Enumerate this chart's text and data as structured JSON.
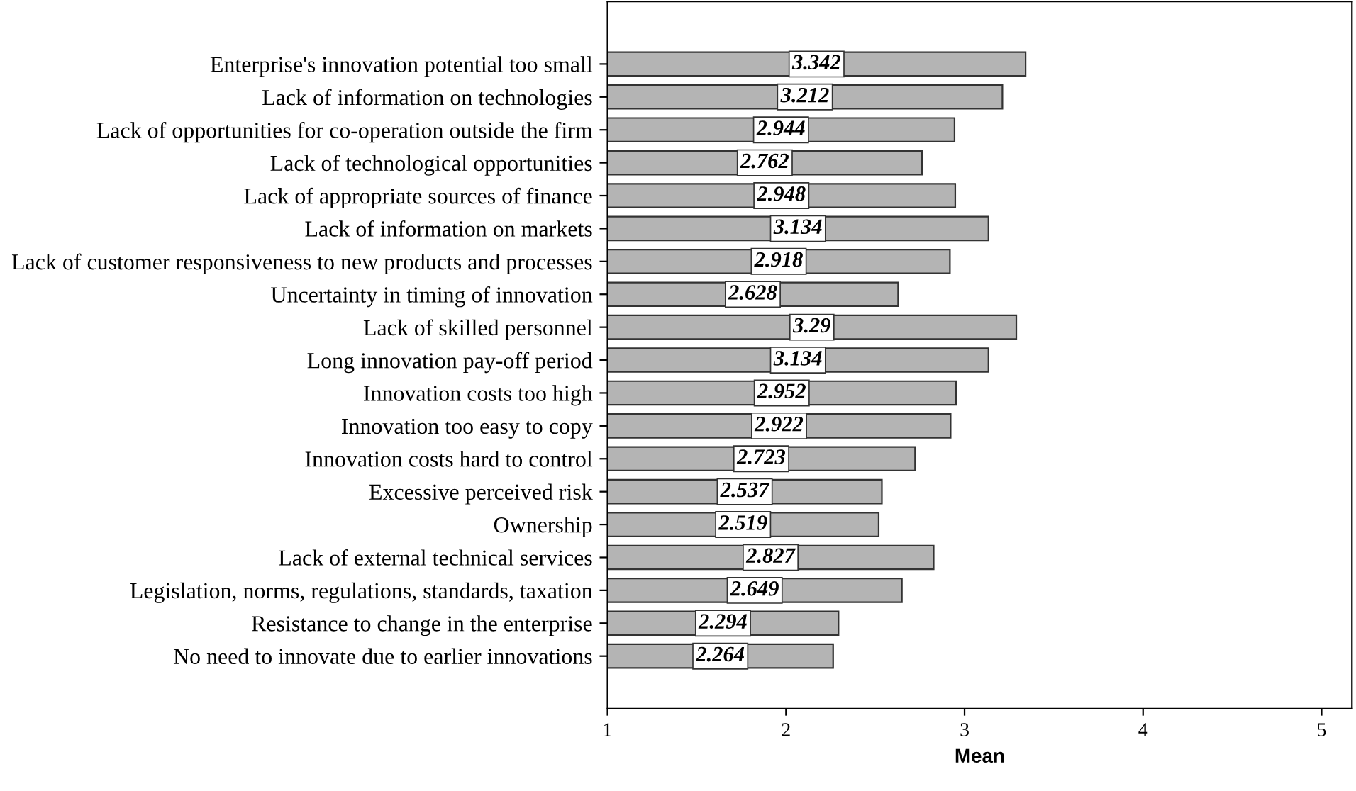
{
  "chart_data": {
    "type": "bar",
    "orientation": "horizontal",
    "xlabel": "Mean",
    "categories": [
      "Enterprise's innovation potential too small",
      "Lack of information on technologies",
      "Lack of opportunities for co-operation outside the firm",
      "Lack of technological opportunities",
      "Lack of appropriate sources of finance",
      "Lack of information on markets",
      "Lack of customer responsiveness to new products and processes",
      "Uncertainty in timing of innovation",
      "Lack of skilled personnel",
      "Long innovation pay-off period",
      "Innovation costs too high",
      "Innovation too easy to copy",
      "Innovation costs hard to control",
      "Excessive perceived risk",
      "Ownership",
      "Lack of external technical services",
      "Legislation, norms, regulations, standards, taxation",
      "Resistance to change in the enterprise",
      "No need to innovate due to earlier innovations"
    ],
    "values": [
      3.342,
      3.212,
      2.944,
      2.762,
      2.948,
      3.134,
      2.918,
      2.628,
      3.29,
      3.134,
      2.952,
      2.922,
      2.723,
      2.537,
      2.519,
      2.827,
      2.649,
      2.294,
      2.264
    ],
    "color": "#b4b4b4",
    "data_labels": true,
    "xlim": [
      1,
      5.17
    ],
    "xticks": [
      1,
      2,
      3,
      4,
      5
    ],
    "grid": false
  }
}
